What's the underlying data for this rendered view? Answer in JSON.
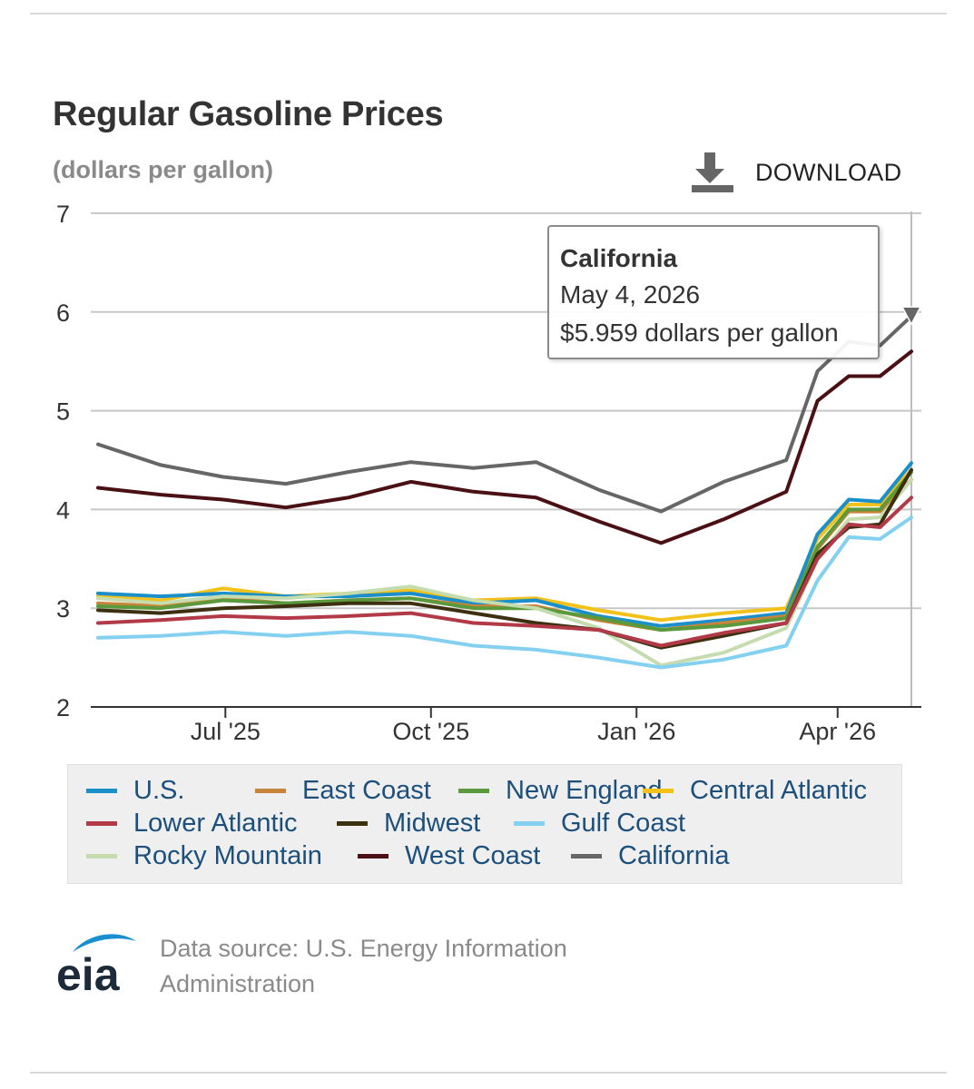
{
  "header": {
    "title": "Regular Gasoline Prices",
    "subtitle": "(dollars per gallon)",
    "download_label": "DOWNLOAD",
    "download_icon": "download-icon"
  },
  "tooltip": {
    "series": "California",
    "date": "May 4, 2026",
    "value": "$5.959 dollars per gallon"
  },
  "footer": {
    "logo_text": "eia",
    "source": "Data source: U.S. Energy Information Administration"
  },
  "legend": [
    {
      "name": "U.S.",
      "color": "#1b8fc9"
    },
    {
      "name": "East Coast",
      "color": "#c8843a"
    },
    {
      "name": "New England",
      "color": "#5b9a3c"
    },
    {
      "name": "Central Atlantic",
      "color": "#f2c21a"
    },
    {
      "name": "Lower Atlantic",
      "color": "#b23a48"
    },
    {
      "name": "Midwest",
      "color": "#3d3010"
    },
    {
      "name": "Gulf Coast",
      "color": "#84d0f0"
    },
    {
      "name": "Rocky Mountain",
      "color": "#c4dcae"
    },
    {
      "name": "West Coast",
      "color": "#4a1014"
    },
    {
      "name": "California",
      "color": "#666666"
    }
  ],
  "chart_data": {
    "type": "line",
    "title": "Regular Gasoline Prices",
    "ylabel": "(dollars per gallon)",
    "ylim": [
      2,
      7
    ],
    "yticks": [
      "2",
      "3",
      "4",
      "5",
      "6",
      "7"
    ],
    "xlim": [
      "2025-05-05",
      "2026-05-04"
    ],
    "xticks": [
      {
        "label": "Jul '25",
        "date": "2025-07-01"
      },
      {
        "label": "Oct '25",
        "date": "2025-10-01"
      },
      {
        "label": "Jan '26",
        "date": "2026-01-01"
      },
      {
        "label": "Apr '26",
        "date": "2026-04-01"
      }
    ],
    "grid": true,
    "legend_position": "bottom",
    "highlight": {
      "series": "California",
      "date": "2026-05-04",
      "value": 5.959
    },
    "x": [
      "2025-05-05",
      "2025-06-02",
      "2025-06-30",
      "2025-07-28",
      "2025-08-25",
      "2025-09-22",
      "2025-10-20",
      "2025-11-17",
      "2025-12-15",
      "2026-01-12",
      "2026-02-09",
      "2026-03-09",
      "2026-03-23",
      "2026-04-06",
      "2026-04-20",
      "2026-05-04"
    ],
    "series": [
      {
        "name": "West Coast",
        "color": "#4a1014",
        "values": [
          4.22,
          4.15,
          4.1,
          4.02,
          4.12,
          4.28,
          4.18,
          4.12,
          3.88,
          3.66,
          3.9,
          4.18,
          5.1,
          5.35,
          5.35,
          5.6
        ]
      },
      {
        "name": "California",
        "color": "#666666",
        "values": [
          4.66,
          4.45,
          4.33,
          4.26,
          4.38,
          4.48,
          4.42,
          4.48,
          4.2,
          3.98,
          4.28,
          4.5,
          5.4,
          5.7,
          5.66,
          5.959
        ]
      },
      {
        "name": "Central Atlantic",
        "color": "#f2c21a",
        "values": [
          3.12,
          3.08,
          3.2,
          3.12,
          3.15,
          3.18,
          3.08,
          3.1,
          2.98,
          2.88,
          2.95,
          3.0,
          3.7,
          4.05,
          4.05,
          4.4
        ]
      },
      {
        "name": "U.S.",
        "color": "#1b8fc9",
        "values": [
          3.15,
          3.12,
          3.15,
          3.12,
          3.12,
          3.15,
          3.05,
          3.08,
          2.92,
          2.82,
          2.88,
          2.95,
          3.75,
          4.1,
          4.08,
          4.47
        ]
      },
      {
        "name": "East Coast",
        "color": "#c8843a",
        "values": [
          3.05,
          3.02,
          3.1,
          3.05,
          3.08,
          3.1,
          3.02,
          3.02,
          2.88,
          2.78,
          2.85,
          2.92,
          3.6,
          3.98,
          3.98,
          4.3
        ]
      },
      {
        "name": "New England",
        "color": "#5b9a3c",
        "values": [
          3.02,
          3.0,
          3.08,
          3.05,
          3.08,
          3.1,
          3.0,
          3.0,
          2.9,
          2.78,
          2.82,
          2.9,
          3.62,
          4.0,
          4.0,
          4.38
        ]
      },
      {
        "name": "Rocky Mountain",
        "color": "#c4dcae",
        "values": [
          3.1,
          3.05,
          3.12,
          3.1,
          3.15,
          3.22,
          3.08,
          3.0,
          2.8,
          2.42,
          2.55,
          2.8,
          3.5,
          3.9,
          3.92,
          4.3
        ]
      },
      {
        "name": "Midwest",
        "color": "#3d3010",
        "values": [
          2.98,
          2.95,
          3.0,
          3.02,
          3.05,
          3.05,
          2.95,
          2.85,
          2.78,
          2.6,
          2.72,
          2.85,
          3.55,
          3.82,
          3.85,
          4.4
        ]
      },
      {
        "name": "Lower Atlantic",
        "color": "#b23a48",
        "values": [
          2.85,
          2.88,
          2.92,
          2.9,
          2.92,
          2.95,
          2.85,
          2.82,
          2.78,
          2.62,
          2.75,
          2.85,
          3.5,
          3.85,
          3.82,
          4.12
        ]
      },
      {
        "name": "Gulf Coast",
        "color": "#84d0f0",
        "values": [
          2.7,
          2.72,
          2.76,
          2.72,
          2.76,
          2.72,
          2.62,
          2.58,
          2.5,
          2.4,
          2.48,
          2.62,
          3.28,
          3.72,
          3.7,
          3.92
        ]
      }
    ]
  }
}
